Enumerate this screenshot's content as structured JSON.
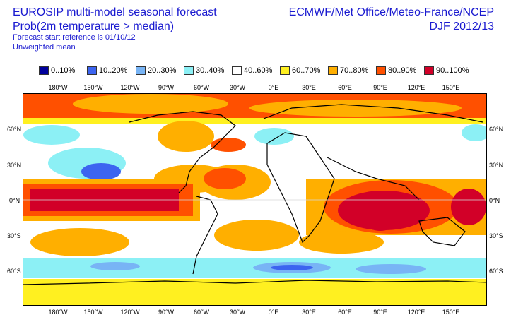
{
  "header": {
    "title": "EUROSIP multi-model seasonal forecast",
    "subtitle": "Prob(2m temperature > median)",
    "start_reference": "Forecast start reference is 01/10/12",
    "mean_type": "Unweighted mean",
    "centres": "ECMWF/Met Office/Meteo-France/NCEP",
    "season": "DJF 2012/13"
  },
  "legend": [
    {
      "label": "0..10%",
      "color": "#00009c"
    },
    {
      "label": "10..20%",
      "color": "#3c64f0"
    },
    {
      "label": "20..30%",
      "color": "#78b4f5"
    },
    {
      "label": "30..40%",
      "color": "#8cf0f5"
    },
    {
      "label": "40..60%",
      "color": "#ffffff"
    },
    {
      "label": "60..70%",
      "color": "#fff020"
    },
    {
      "label": "70..80%",
      "color": "#ffaf00"
    },
    {
      "label": "80..90%",
      "color": "#ff5000"
    },
    {
      "label": "90..100%",
      "color": "#d20028"
    }
  ],
  "lon_labels": [
    "180°W",
    "150°W",
    "120°W",
    "90°W",
    "60°W",
    "30°W",
    "0°E",
    "30°E",
    "60°E",
    "90°E",
    "120°E",
    "150°E"
  ],
  "lat_labels": [
    "60°N",
    "30°N",
    "0°N",
    "30°S",
    "60°S"
  ]
}
